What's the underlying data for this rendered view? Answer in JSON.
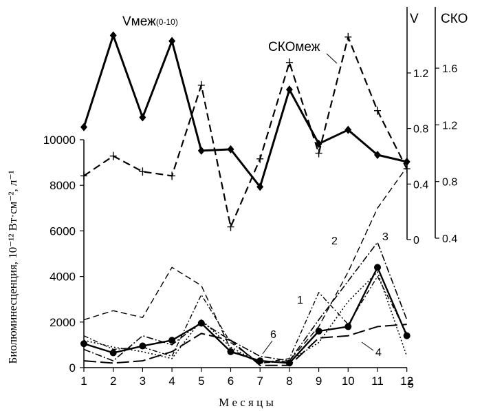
{
  "chart_data": {
    "type": "line",
    "xlabel": "М е с я ц ы",
    "ylabel": "Биолюминесценция, 10⁻¹² Вт·см⁻², л⁻¹",
    "x_ticks": [
      1,
      2,
      3,
      4,
      5,
      6,
      7,
      8,
      9,
      10,
      11,
      12
    ],
    "left_axis": {
      "ylim": [
        0,
        10000
      ],
      "ticks": [
        0,
        2000,
        4000,
        6000,
        8000,
        10000
      ]
    },
    "right_axes": [
      {
        "label": "V",
        "ylim": [
          0,
          1.4
        ],
        "ticks": [
          "0",
          "0.4",
          "0.8",
          "1.2"
        ]
      },
      {
        "label": "СКО",
        "ylim": [
          0.4,
          1.9
        ],
        "ticks": [
          "0.4",
          "0.8",
          "1.2",
          "1.6"
        ]
      }
    ],
    "v_series": {
      "label_main": "Vмеж",
      "label_sub": "(0-10)",
      "x": [
        1,
        2,
        3,
        4,
        5,
        6,
        7,
        8,
        9,
        10,
        11,
        12
      ],
      "y": [
        0.81,
        1.47,
        0.88,
        1.43,
        0.64,
        0.65,
        0.38,
        1.08,
        0.69,
        0.79,
        0.61,
        0.56
      ]
    },
    "sko_series": {
      "label": "СКОмеж",
      "x": [
        1,
        2,
        3,
        4,
        5,
        6,
        7,
        8,
        9,
        10,
        11,
        12
      ],
      "y": [
        0.84,
        0.98,
        0.87,
        0.84,
        1.48,
        0.48,
        0.96,
        1.64,
        1.0,
        1.82,
        1.3,
        0.89
      ]
    },
    "stations": [
      {
        "label": "1",
        "x": [
          1,
          2,
          3,
          4,
          5,
          6,
          7,
          8,
          9,
          10,
          11,
          12
        ],
        "y": [
          1400,
          800,
          900,
          500,
          3200,
          1100,
          200,
          400,
          3300,
          1900,
          4000,
          1500
        ]
      },
      {
        "label": "2",
        "x": [
          1,
          2,
          3,
          4,
          5,
          6,
          7,
          8,
          9,
          10,
          11,
          12
        ],
        "y": [
          2100,
          2500,
          2200,
          4400,
          3600,
          800,
          200,
          300,
          1800,
          4200,
          7000,
          8800
        ]
      },
      {
        "label": "3",
        "x": [
          1,
          2,
          3,
          4,
          5,
          6,
          7,
          8,
          9,
          10,
          11,
          12
        ],
        "y": [
          800,
          300,
          1400,
          1000,
          2000,
          1200,
          500,
          300,
          2100,
          3800,
          5500,
          2100
        ]
      },
      {
        "label": "4",
        "x": [
          1,
          2,
          3,
          4,
          5,
          6,
          7,
          8,
          9,
          10,
          11,
          12
        ],
        "y": [
          300,
          200,
          300,
          700,
          1500,
          1200,
          100,
          100,
          1300,
          1400,
          1800,
          1900
        ]
      },
      {
        "label": "5",
        "x": [
          1,
          2,
          3,
          4,
          5,
          6,
          7,
          8,
          9,
          10,
          11,
          12
        ],
        "y": [
          1200,
          900,
          700,
          400,
          2100,
          900,
          200,
          300,
          1100,
          2900,
          4200,
          500
        ]
      },
      {
        "label": "6",
        "x": [
          1,
          2,
          3,
          4,
          5,
          6,
          7,
          8,
          9,
          10,
          11,
          12
        ],
        "y": [
          1050,
          650,
          950,
          1200,
          1950,
          700,
          300,
          200,
          1600,
          1800,
          4400,
          1400
        ]
      }
    ]
  }
}
